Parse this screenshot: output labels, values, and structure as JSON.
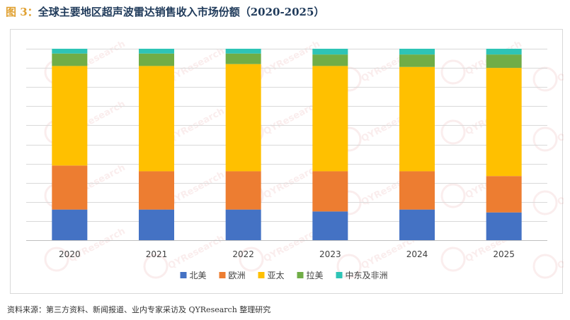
{
  "figure": {
    "label": "图 3",
    "separator": "：",
    "title": "全球主要地区超声波雷达销售收入市场份额（2020-2025）"
  },
  "source_note": "资料来源：第三方资料、新闻报道、业内专家采访及 QYResearch 整理研究",
  "watermark_text": "QYResearch",
  "chart_data": {
    "type": "bar",
    "stacked": true,
    "percent": true,
    "title": "全球主要地区超声波雷达销售收入市场份额（2020-2025）",
    "categories": [
      "2020",
      "2021",
      "2022",
      "2023",
      "2024",
      "2025"
    ],
    "ylim": [
      0,
      100
    ],
    "grid": true,
    "legend_position": "bottom",
    "series": [
      {
        "name": "北美",
        "color": "#4472c4",
        "values": [
          16.0,
          16.0,
          16.0,
          15.0,
          16.0,
          14.5
        ]
      },
      {
        "name": "欧洲",
        "color": "#ed7d31",
        "values": [
          23.0,
          20.0,
          20.0,
          21.0,
          20.0,
          19.0
        ]
      },
      {
        "name": "亚太",
        "color": "#ffc000",
        "values": [
          52.0,
          55.0,
          56.0,
          55.0,
          54.5,
          56.5
        ]
      },
      {
        "name": "拉美",
        "color": "#70ad47",
        "values": [
          6.5,
          6.5,
          5.5,
          6.0,
          6.5,
          7.0
        ]
      },
      {
        "name": "中东及非洲",
        "color": "#2ec4b6",
        "values": [
          2.5,
          2.5,
          2.5,
          3.0,
          3.0,
          3.0
        ]
      }
    ]
  }
}
